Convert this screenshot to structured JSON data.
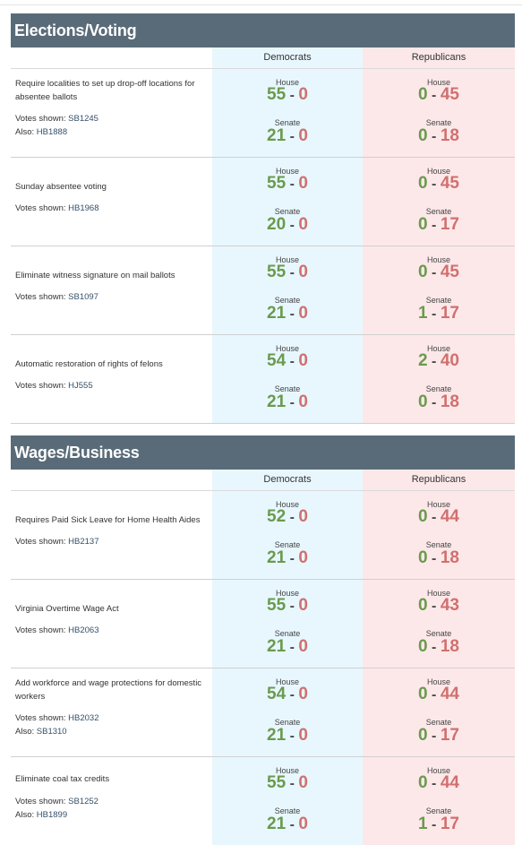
{
  "sections": [
    {
      "title": "Elections/Voting",
      "col_dem": "Democrats",
      "col_rep": "Republicans",
      "rows": [
        {
          "title": "Require localities to set up drop-off locations for absentee ballots",
          "votes_label": "Votes shown:",
          "bill": "SB1245",
          "also_label": "Also:",
          "also": "HB1888",
          "house_label": "House",
          "senate_label": "Senate",
          "dem": {
            "house_yes": "55",
            "house_no": "0",
            "senate_yes": "21",
            "senate_no": "0"
          },
          "rep": {
            "house_yes": "0",
            "house_no": "45",
            "senate_yes": "0",
            "senate_no": "18"
          }
        },
        {
          "title": "Sunday absentee voting",
          "votes_label": "Votes shown:",
          "bill": "HB1968",
          "also_label": "",
          "also": "",
          "house_label": "House",
          "senate_label": "Senate",
          "dem": {
            "house_yes": "55",
            "house_no": "0",
            "senate_yes": "20",
            "senate_no": "0"
          },
          "rep": {
            "house_yes": "0",
            "house_no": "45",
            "senate_yes": "0",
            "senate_no": "17"
          }
        },
        {
          "title": "Eliminate witness signature on mail ballots",
          "votes_label": "Votes shown:",
          "bill": "SB1097",
          "also_label": "",
          "also": "",
          "house_label": "House",
          "senate_label": "Senate",
          "dem": {
            "house_yes": "55",
            "house_no": "0",
            "senate_yes": "21",
            "senate_no": "0"
          },
          "rep": {
            "house_yes": "0",
            "house_no": "45",
            "senate_yes": "1",
            "senate_no": "17"
          }
        },
        {
          "title": "Automatic restoration of rights of felons",
          "votes_label": "Votes shown:",
          "bill": "HJ555",
          "also_label": "",
          "also": "",
          "house_label": "House",
          "senate_label": "Senate",
          "dem": {
            "house_yes": "54",
            "house_no": "0",
            "senate_yes": "21",
            "senate_no": "0"
          },
          "rep": {
            "house_yes": "2",
            "house_no": "40",
            "senate_yes": "0",
            "senate_no": "18"
          }
        }
      ]
    },
    {
      "title": "Wages/Business",
      "col_dem": "Democrats",
      "col_rep": "Republicans",
      "rows": [
        {
          "title": "Requires Paid Sick Leave for Home Health Aides",
          "votes_label": "Votes shown:",
          "bill": "HB2137",
          "also_label": "",
          "also": "",
          "house_label": "House",
          "senate_label": "Senate",
          "dem": {
            "house_yes": "52",
            "house_no": "0",
            "senate_yes": "21",
            "senate_no": "0"
          },
          "rep": {
            "house_yes": "0",
            "house_no": "44",
            "senate_yes": "0",
            "senate_no": "18"
          }
        },
        {
          "title": "Virginia Overtime Wage Act",
          "votes_label": "Votes shown:",
          "bill": "HB2063",
          "also_label": "",
          "also": "",
          "house_label": "House",
          "senate_label": "Senate",
          "dem": {
            "house_yes": "55",
            "house_no": "0",
            "senate_yes": "21",
            "senate_no": "0"
          },
          "rep": {
            "house_yes": "0",
            "house_no": "43",
            "senate_yes": "0",
            "senate_no": "18"
          }
        },
        {
          "title": "Add workforce and wage protections for domestic workers",
          "votes_label": "Votes shown:",
          "bill": "HB2032",
          "also_label": "Also:",
          "also": "SB1310",
          "house_label": "House",
          "senate_label": "Senate",
          "dem": {
            "house_yes": "54",
            "house_no": "0",
            "senate_yes": "21",
            "senate_no": "0"
          },
          "rep": {
            "house_yes": "0",
            "house_no": "44",
            "senate_yes": "0",
            "senate_no": "17"
          }
        },
        {
          "title": "Eliminate coal tax credits",
          "votes_label": "Votes shown:",
          "bill": "SB1252",
          "also_label": "Also:",
          "also": "HB1899",
          "house_label": "House",
          "senate_label": "Senate",
          "dem": {
            "house_yes": "55",
            "house_no": "0",
            "senate_yes": "21",
            "senate_no": "0"
          },
          "rep": {
            "house_yes": "0",
            "house_no": "44",
            "senate_yes": "1",
            "senate_no": "17"
          }
        }
      ]
    }
  ]
}
